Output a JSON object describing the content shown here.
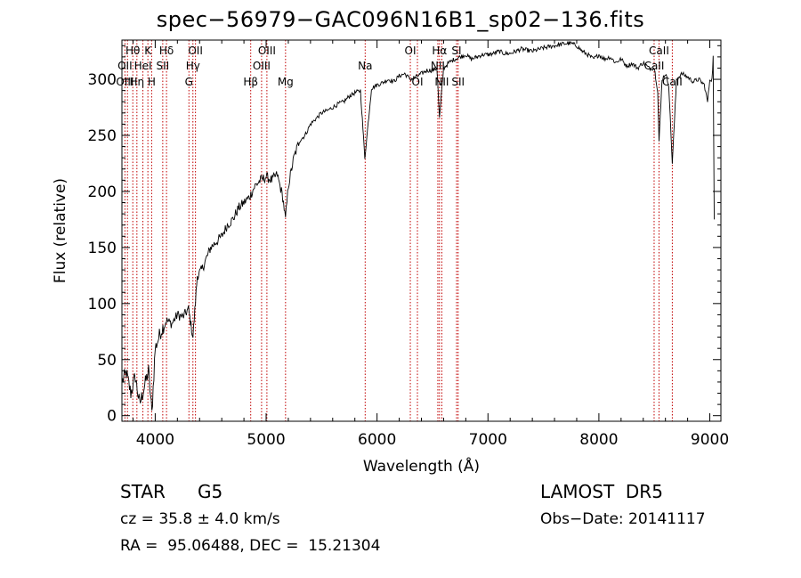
{
  "title": "spec−56979−GAC096N16B1_sp02−136.fits",
  "info": {
    "object_class": "STAR",
    "subclass": "G5",
    "survey": "LAMOST  DR5",
    "cz": "cz = 35.8 ± 4.0 km/s",
    "obs_date": "Obs−Date: 20141117",
    "coords": "RA =  95.06488, DEC =  15.21304"
  },
  "chart_data": {
    "type": "line",
    "title": "spec−56979−GAC096N16B1_sp02−136.fits",
    "xlabel": "Wavelength (Å)",
    "ylabel": "Flux (relative)",
    "xlim": [
      3700,
      9100
    ],
    "ylim": [
      -5,
      335
    ],
    "x_ticks": [
      4000,
      5000,
      6000,
      7000,
      8000,
      9000
    ],
    "y_ticks": [
      0,
      50,
      100,
      150,
      200,
      250,
      300
    ],
    "grid": false,
    "line_color": "#000000",
    "marker_color": "#c00000",
    "series": [
      {
        "x": [
          3700,
          3740,
          3780,
          3820,
          3860,
          3900,
          3940,
          3970,
          4000,
          4050,
          4100,
          4150,
          4200,
          4250,
          4300,
          4340,
          4380,
          4420,
          4460,
          4500,
          4550,
          4600,
          4650,
          4700,
          4750,
          4800,
          4850,
          4900,
          4950,
          5000,
          5050,
          5100,
          5150,
          5175,
          5200,
          5250,
          5300,
          5350,
          5400,
          5450,
          5500,
          5550,
          5600,
          5650,
          5700,
          5750,
          5800,
          5850,
          5890,
          5950,
          6000,
          6050,
          6100,
          6150,
          6200,
          6250,
          6300,
          6350,
          6400,
          6450,
          6500,
          6540,
          6563,
          6600,
          6650,
          6700,
          6750,
          6800,
          6850,
          6900,
          6950,
          7000,
          7050,
          7100,
          7150,
          7200,
          7300,
          7400,
          7500,
          7600,
          7700,
          7750,
          7800,
          7850,
          7900,
          7950,
          8000,
          8050,
          8100,
          8150,
          8200,
          8250,
          8300,
          8350,
          8400,
          8450,
          8500,
          8530,
          8542,
          8570,
          8600,
          8630,
          8662,
          8700,
          8750,
          8800,
          8850,
          8900,
          8950,
          8980,
          9000,
          9020,
          9030,
          9040
        ],
        "y": [
          30,
          38,
          20,
          35,
          10,
          25,
          40,
          2,
          60,
          75,
          85,
          82,
          90,
          88,
          95,
          70,
          125,
          130,
          140,
          150,
          155,
          160,
          170,
          175,
          185,
          190,
          195,
          205,
          210,
          213,
          210,
          215,
          195,
          175,
          205,
          230,
          245,
          250,
          260,
          265,
          270,
          272,
          275,
          278,
          280,
          285,
          288,
          290,
          230,
          292,
          295,
          297,
          300,
          298,
          303,
          305,
          300,
          302,
          305,
          308,
          308,
          310,
          265,
          310,
          315,
          318,
          320,
          322,
          318,
          320,
          322,
          322,
          323,
          325,
          323,
          323,
          327,
          325,
          328,
          330,
          332,
          332,
          330,
          325,
          322,
          318,
          322,
          318,
          320,
          315,
          318,
          312,
          314,
          310,
          315,
          310,
          310,
          290,
          245,
          300,
          305,
          295,
          225,
          300,
          305,
          302,
          298,
          300,
          295,
          280,
          300,
          300,
          320,
          175
        ]
      }
    ],
    "lines": [
      {
        "label": "Hθ",
        "wl": 3798,
        "row": 0
      },
      {
        "label": "K",
        "wl": 3934,
        "row": 0
      },
      {
        "label": "Hδ",
        "wl": 4102,
        "row": 0
      },
      {
        "label": "OII",
        "wl": 4363,
        "row": 0
      },
      {
        "label": "OIII",
        "wl": 5007,
        "row": 0
      },
      {
        "label": "Na",
        "wl": 5893,
        "row": 1
      },
      {
        "label": "OI",
        "wl": 6300,
        "row": 0
      },
      {
        "label": "Hα",
        "wl": 6563,
        "row": 0
      },
      {
        "label": "SI",
        "wl": 6717,
        "row": 0
      },
      {
        "label": "CaII",
        "wl": 8542,
        "row": 0
      },
      {
        "label": "OII",
        "wl": 3727,
        "row": 1
      },
      {
        "label": "HeI",
        "wl": 3889,
        "row": 1
      },
      {
        "label": "SII",
        "wl": 4068,
        "row": 1
      },
      {
        "label": "Hγ",
        "wl": 4340,
        "row": 1
      },
      {
        "label": "OIII",
        "wl": 4959,
        "row": 1
      },
      {
        "label": "NII",
        "wl": 6548,
        "row": 1
      },
      {
        "label": "CaII",
        "wl": 8498,
        "row": 1
      },
      {
        "label": "OIII",
        "wl": 3727,
        "row": 2
      },
      {
        "label": "Hη",
        "wl": 3835,
        "row": 2
      },
      {
        "label": "H",
        "wl": 3968,
        "row": 2
      },
      {
        "label": "G",
        "wl": 4304,
        "row": 2
      },
      {
        "label": "Hβ",
        "wl": 4861,
        "row": 2
      },
      {
        "label": "Mg",
        "wl": 5175,
        "row": 2
      },
      {
        "label": "OI",
        "wl": 6364,
        "row": 2
      },
      {
        "label": "NII",
        "wl": 6584,
        "row": 2
      },
      {
        "label": "SII",
        "wl": 6731,
        "row": 2
      },
      {
        "label": "CaII",
        "wl": 8662,
        "row": 2
      }
    ],
    "extra_marker_wl": [
      3750,
      3889,
      4068,
      4340,
      4959,
      5175,
      6300,
      6364,
      6548,
      6584,
      6717,
      6731,
      8498,
      8542,
      8662
    ]
  }
}
